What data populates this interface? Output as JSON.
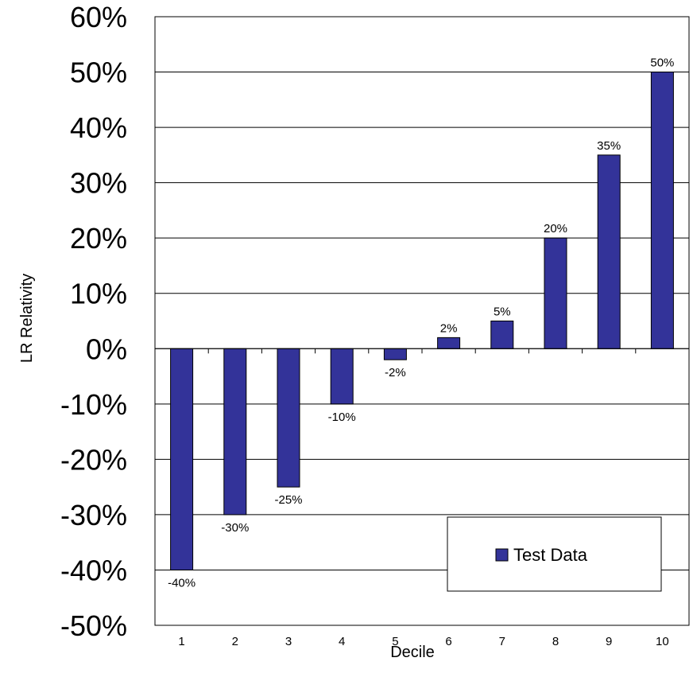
{
  "chart_data": {
    "type": "bar",
    "categories": [
      "1",
      "2",
      "3",
      "4",
      "5",
      "6",
      "7",
      "8",
      "9",
      "10"
    ],
    "series": [
      {
        "name": "Test Data",
        "values": [
          -40,
          -30,
          -25,
          -10,
          -2,
          2,
          5,
          20,
          35,
          50
        ],
        "color": "#333399"
      }
    ],
    "data_labels": [
      "-40%",
      "-30%",
      "-25%",
      "-10%",
      "-2%",
      "2%",
      "5%",
      "20%",
      "35%",
      "50%"
    ],
    "y_ticks": [
      60,
      50,
      40,
      30,
      20,
      10,
      0,
      -10,
      -20,
      -30,
      -40,
      -50
    ],
    "y_tick_labels": [
      "60%",
      "50%",
      "40%",
      "30%",
      "20%",
      "10%",
      "0%",
      "-10%",
      "-20%",
      "-30%",
      "-40%",
      "-50%"
    ],
    "title": "",
    "xlabel": "Decile",
    "ylabel": "LR Relativity",
    "ylim": [
      -50,
      60
    ],
    "grid": true,
    "legend": {
      "position": "bottom-right",
      "label": "Test Data"
    }
  }
}
